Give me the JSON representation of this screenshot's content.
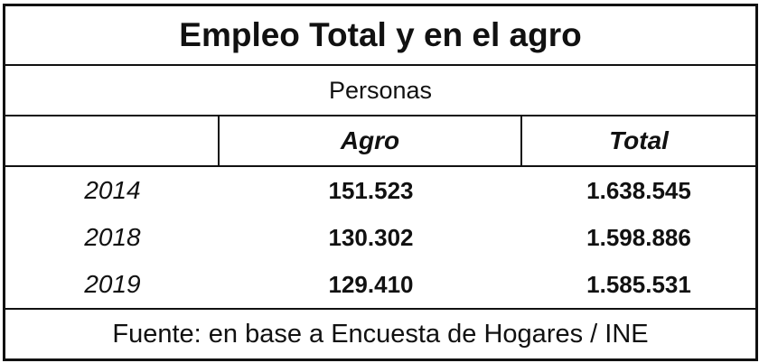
{
  "title": "Empleo Total y en el agro",
  "subtitle": "Personas",
  "table": {
    "columns": [
      "Agro",
      "Total"
    ],
    "rows": [
      [
        "2014",
        "151.523",
        "1.638.545"
      ],
      [
        "2018",
        "130.302",
        "1.598.886"
      ],
      [
        "2019",
        "129.410",
        "1.585.531"
      ]
    ]
  },
  "footer": "Fuente: en base a Encuesta de Hogares / INE"
}
